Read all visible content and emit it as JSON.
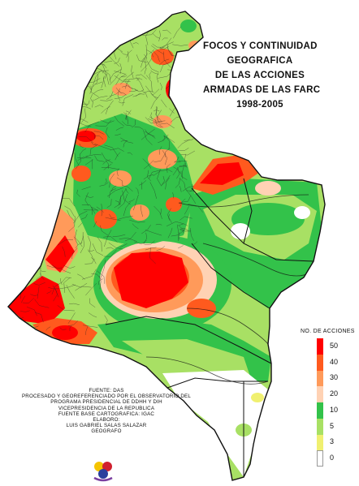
{
  "title": {
    "lines": [
      "FOCOS Y CONTINUIDAD",
      "GEOGRAFICA",
      "DE LAS ACCIONES",
      "ARMADAS DE LAS FARC",
      "1998-2005"
    ]
  },
  "legend": {
    "title": "NO. DE ACCIONES",
    "items": [
      {
        "label": "50",
        "color": "#ff0000"
      },
      {
        "label": "40",
        "color": "#ff5a1e"
      },
      {
        "label": "30",
        "color": "#ff9a5a"
      },
      {
        "label": "20",
        "color": "#ffd2b4"
      },
      {
        "label": "10",
        "color": "#33c24a"
      },
      {
        "label": "5",
        "color": "#a8e064"
      },
      {
        "label": "3",
        "color": "#f0f070"
      },
      {
        "label": "0",
        "color": "#ffffff"
      }
    ]
  },
  "credits": {
    "lines": [
      "FUENTE: DAS",
      "PROCESADO Y GEOREFERENCIADO POR EL OBSERVATORIO DEL",
      "PROGRAMA PRESIDENCIAL DE DDHH Y DIH",
      "VICEPRESIDENCIA DE LA REPUBLICA",
      "FUENTE BASE CARTOGRAFICA: IGAC",
      "ELABORO:",
      "LUIS GABRIEL SALAS SALAZAR",
      "GEOGRAFO"
    ]
  },
  "colors": {
    "red": "#ff0000",
    "orange": "#ff5a1e",
    "salmon": "#ff9a5a",
    "peach": "#ffd2b4",
    "green": "#33c24a",
    "lightgreen": "#a8e064",
    "yellow": "#f0f070",
    "border": "#111111"
  }
}
